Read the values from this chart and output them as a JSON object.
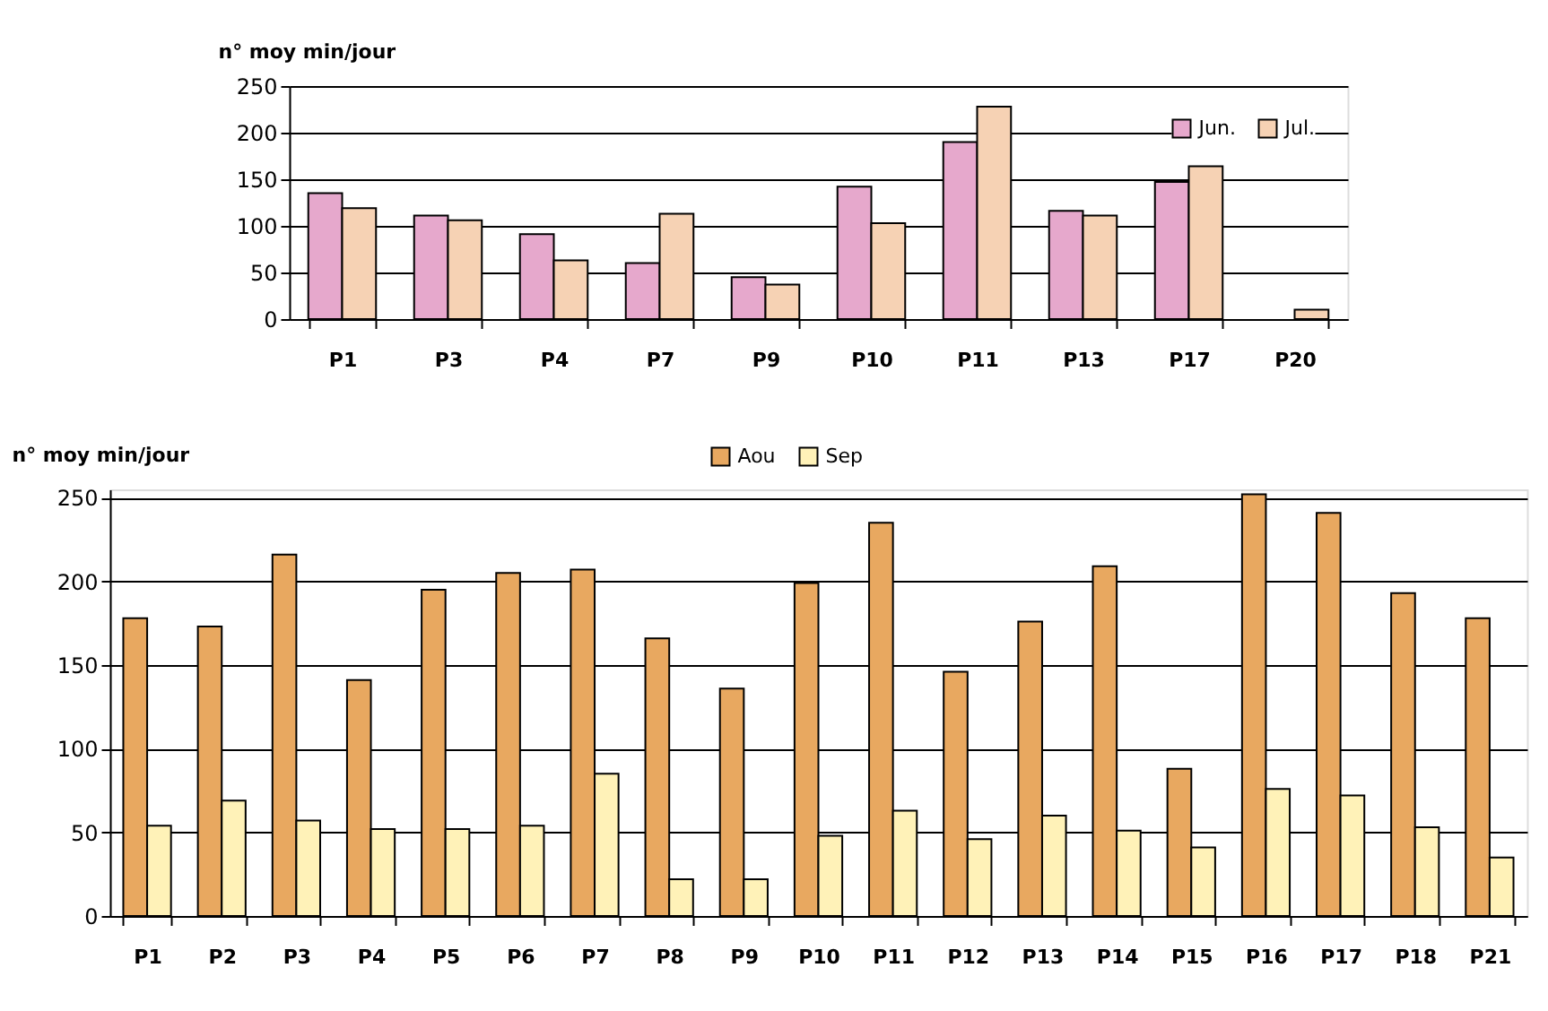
{
  "chart_data": [
    {
      "type": "bar",
      "ylabel": "n° moy min/jour",
      "categories": [
        "P1",
        "P3",
        "P4",
        "P7",
        "P9",
        "P10",
        "P11",
        "P13",
        "P17",
        "P20"
      ],
      "series": [
        {
          "name": "Jun.",
          "color": "#e6a8cc",
          "values": [
            135,
            111,
            91,
            60,
            45,
            142,
            190,
            116,
            147,
            null
          ]
        },
        {
          "name": "Jul.",
          "color": "#f6d2b4",
          "values": [
            119,
            106,
            63,
            113,
            37,
            103,
            228,
            111,
            164,
            10
          ]
        }
      ],
      "ylim": [
        0,
        250
      ],
      "yticks": [
        0,
        50,
        100,
        150,
        200,
        250
      ],
      "grid": "y",
      "legend": "top right"
    },
    {
      "type": "bar",
      "ylabel": "n° moy min/jour",
      "categories": [
        "P1",
        "P2",
        "P3",
        "P4",
        "P5",
        "P6",
        "P7",
        "P8",
        "P9",
        "P10",
        "P11",
        "P12",
        "P13",
        "P14",
        "P15",
        "P16",
        "P17",
        "P18",
        "P21"
      ],
      "series": [
        {
          "name": "Aou",
          "color": "#e8a860",
          "values": [
            178,
            173,
            216,
            141,
            195,
            205,
            207,
            166,
            136,
            199,
            235,
            146,
            176,
            209,
            88,
            252,
            241,
            193,
            178
          ]
        },
        {
          "name": "Sep",
          "color": "#fff2b8",
          "values": [
            54,
            69,
            57,
            52,
            52,
            54,
            85,
            22,
            22,
            48,
            63,
            46,
            60,
            51,
            41,
            76,
            72,
            53,
            35
          ]
        }
      ],
      "ylim": [
        0,
        255
      ],
      "yticks": [
        0,
        50,
        100,
        150,
        200,
        250
      ],
      "grid": "y",
      "legend": "top"
    }
  ]
}
